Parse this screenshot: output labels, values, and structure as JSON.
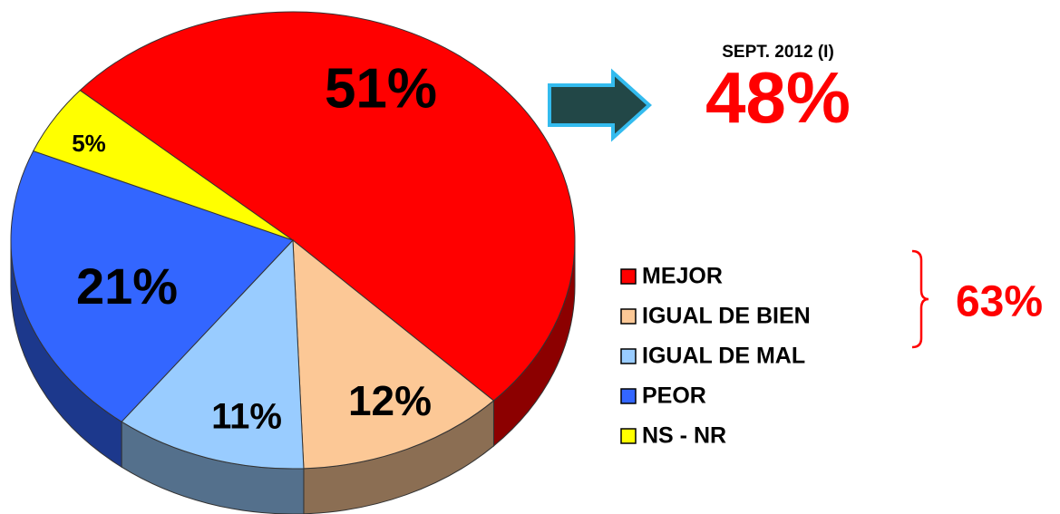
{
  "chart_data": {
    "type": "pie",
    "categories": [
      "MEJOR",
      "IGUAL DE BIEN",
      "IGUAL DE MAL",
      "PEOR",
      "NS - NR"
    ],
    "values": [
      51,
      12,
      11,
      21,
      5
    ],
    "value_labels": [
      "51%",
      "12%",
      "11%",
      "21%",
      "5%"
    ],
    "colors": [
      "#ff0000",
      "#fcc896",
      "#99ccff",
      "#3366ff",
      "#ffff00"
    ],
    "annotations": {
      "period": "SEPT. 2012 (I)",
      "previous": "48%",
      "group_total": "63%"
    }
  }
}
